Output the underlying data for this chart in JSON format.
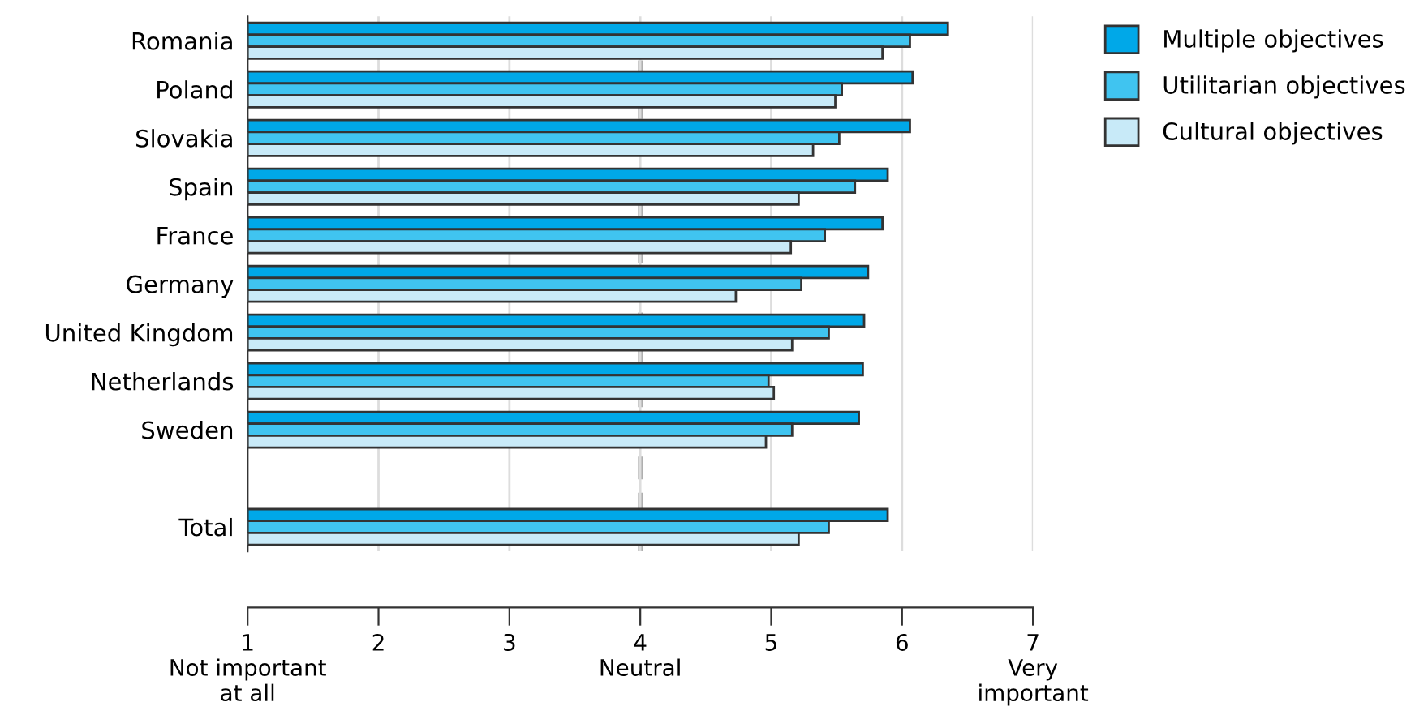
{
  "chart_data": {
    "type": "bar",
    "orientation": "horizontal",
    "categories": [
      "Romania",
      "Poland",
      "Slovakia",
      "Spain",
      "France",
      "Germany",
      "United Kingdom",
      "Netherlands",
      "Sweden",
      null,
      "Total"
    ],
    "series": [
      {
        "name": "Multiple objectives",
        "color": "#00a8e8",
        "values": [
          6.35,
          6.08,
          6.06,
          5.89,
          5.85,
          5.74,
          5.71,
          5.7,
          5.67,
          null,
          5.89
        ]
      },
      {
        "name": "Utilitarian objectives",
        "color": "#40c4f0",
        "values": [
          6.06,
          5.54,
          5.52,
          5.64,
          5.41,
          5.23,
          5.44,
          4.98,
          5.16,
          null,
          5.44
        ]
      },
      {
        "name": "Cultural objectives",
        "color": "#c8eaf8",
        "values": [
          5.85,
          5.49,
          5.32,
          5.21,
          5.15,
          4.73,
          5.16,
          5.02,
          4.96,
          null,
          5.21
        ]
      }
    ],
    "xlim": [
      1,
      7
    ],
    "xticks": [
      {
        "value": 1,
        "label": "1\nNot important\nat all"
      },
      2,
      3,
      {
        "value": 4,
        "label": "4\nNeutral"
      },
      5,
      6,
      {
        "value": 7,
        "label": "7\nVery\nimportant"
      }
    ],
    "grid": "x",
    "ref_lines": [
      {
        "axis": "x",
        "value": 4,
        "color": "#aaaaaa",
        "line_style": "dashed"
      }
    ],
    "legend": "top right"
  }
}
